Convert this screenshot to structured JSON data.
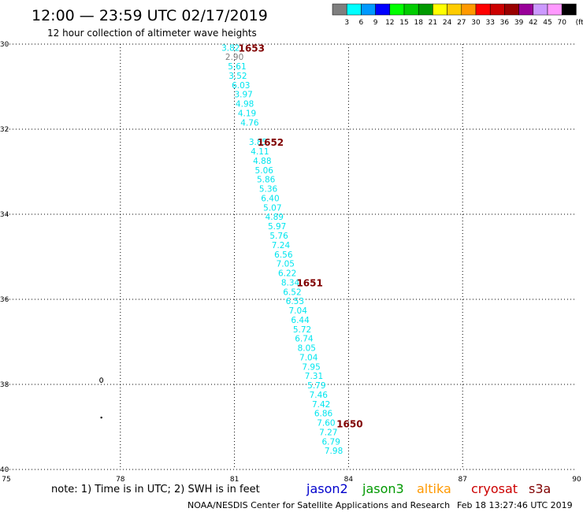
{
  "header": {
    "title": "12:00  —  23:59  UTC  02/17/2019",
    "subtitle": "12 hour collection of altimeter wave heights"
  },
  "color_scale": {
    "labels": [
      "3",
      "6",
      "9",
      "12",
      "15",
      "18",
      "21",
      "24",
      "27",
      "30",
      "33",
      "36",
      "39",
      "42",
      "45",
      "70"
    ],
    "unit": "(ft)",
    "colors": [
      "#7f7f7f",
      "#00ffff",
      "#0099ff",
      "#0000ff",
      "#00ff00",
      "#00cc00",
      "#009900",
      "#ffff00",
      "#ffcc00",
      "#ff9900",
      "#ff0000",
      "#cc0000",
      "#990000",
      "#990099",
      "#cc99ff",
      "#ff99ff",
      "#000000"
    ]
  },
  "chart_data": {
    "type": "scatter",
    "xlim": [
      75,
      90
    ],
    "ylim": [
      -40,
      -30
    ],
    "x_ticks": [
      "75",
      "78",
      "81",
      "84",
      "87",
      "90"
    ],
    "y_ticks": [
      "-30",
      "-32",
      "-34",
      "-36",
      "-38",
      "-40"
    ],
    "grid": true,
    "points": [
      {
        "x": 80.9,
        "y": -30.08,
        "label": "3.82",
        "color": "#00e5ee"
      },
      {
        "x": 81.0,
        "y": -30.3,
        "label": "2.90",
        "color": "#7f7f7f"
      },
      {
        "x": 81.07,
        "y": -30.52,
        "label": "5.61",
        "color": "#00e5ee"
      },
      {
        "x": 81.09,
        "y": -30.74,
        "label": "3.52",
        "color": "#00e5ee"
      },
      {
        "x": 81.17,
        "y": -30.96,
        "label": "6.03",
        "color": "#00e5ee"
      },
      {
        "x": 81.24,
        "y": -31.18,
        "label": "3.97",
        "color": "#00e5ee"
      },
      {
        "x": 81.27,
        "y": -31.4,
        "label": "4.98",
        "color": "#00e5ee"
      },
      {
        "x": 81.33,
        "y": -31.62,
        "label": "4.19",
        "color": "#00e5ee"
      },
      {
        "x": 81.4,
        "y": -31.84,
        "label": "4.76",
        "color": "#00e5ee"
      },
      {
        "x": 81.62,
        "y": -32.3,
        "label": "3.85",
        "color": "#00e5ee"
      },
      {
        "x": 81.67,
        "y": -32.52,
        "label": "4.11",
        "color": "#00e5ee"
      },
      {
        "x": 81.73,
        "y": -32.74,
        "label": "4.88",
        "color": "#00e5ee"
      },
      {
        "x": 81.78,
        "y": -32.96,
        "label": "5.06",
        "color": "#00e5ee"
      },
      {
        "x": 81.83,
        "y": -33.18,
        "label": "5.86",
        "color": "#00e5ee"
      },
      {
        "x": 81.89,
        "y": -33.4,
        "label": "5.36",
        "color": "#00e5ee"
      },
      {
        "x": 81.94,
        "y": -33.62,
        "label": "6.40",
        "color": "#00e5ee"
      },
      {
        "x": 82.0,
        "y": -33.84,
        "label": "5.07",
        "color": "#00e5ee"
      },
      {
        "x": 82.05,
        "y": -34.06,
        "label": "4.89",
        "color": "#00e5ee"
      },
      {
        "x": 82.12,
        "y": -34.28,
        "label": "5.97",
        "color": "#00e5ee"
      },
      {
        "x": 82.17,
        "y": -34.5,
        "label": "5.76",
        "color": "#00e5ee"
      },
      {
        "x": 82.22,
        "y": -34.72,
        "label": "7.24",
        "color": "#00e5ee"
      },
      {
        "x": 82.29,
        "y": -34.94,
        "label": "6.56",
        "color": "#00e5ee"
      },
      {
        "x": 82.34,
        "y": -35.16,
        "label": "7.05",
        "color": "#00e5ee"
      },
      {
        "x": 82.39,
        "y": -35.38,
        "label": "6.22",
        "color": "#00e5ee"
      },
      {
        "x": 82.47,
        "y": -35.6,
        "label": "8.34",
        "color": "#00e5ee"
      },
      {
        "x": 82.52,
        "y": -35.82,
        "label": "6.52",
        "color": "#00e5ee"
      },
      {
        "x": 82.59,
        "y": -36.04,
        "label": "6.53",
        "color": "#00e5ee"
      },
      {
        "x": 82.67,
        "y": -36.26,
        "label": "7.04",
        "color": "#00e5ee"
      },
      {
        "x": 82.73,
        "y": -36.48,
        "label": "6.44",
        "color": "#00e5ee"
      },
      {
        "x": 82.78,
        "y": -36.7,
        "label": "5.72",
        "color": "#00e5ee"
      },
      {
        "x": 82.83,
        "y": -36.92,
        "label": "6.74",
        "color": "#00e5ee"
      },
      {
        "x": 82.9,
        "y": -37.14,
        "label": "8.05",
        "color": "#00e5ee"
      },
      {
        "x": 82.95,
        "y": -37.36,
        "label": "7.04",
        "color": "#00e5ee"
      },
      {
        "x": 83.02,
        "y": -37.58,
        "label": "7.95",
        "color": "#00e5ee"
      },
      {
        "x": 83.09,
        "y": -37.8,
        "label": "7.31",
        "color": "#00e5ee"
      },
      {
        "x": 83.16,
        "y": -38.02,
        "label": "5.79",
        "color": "#00e5ee"
      },
      {
        "x": 83.21,
        "y": -38.24,
        "label": "7.46",
        "color": "#00e5ee"
      },
      {
        "x": 83.28,
        "y": -38.46,
        "label": "7.42",
        "color": "#00e5ee"
      },
      {
        "x": 83.34,
        "y": -38.68,
        "label": "6.86",
        "color": "#00e5ee"
      },
      {
        "x": 83.41,
        "y": -38.9,
        "label": "7.60",
        "color": "#00e5ee"
      },
      {
        "x": 83.47,
        "y": -39.12,
        "label": "7.27",
        "color": "#00e5ee"
      },
      {
        "x": 83.54,
        "y": -39.34,
        "label": "6.79",
        "color": "#00e5ee"
      },
      {
        "x": 83.61,
        "y": -39.56,
        "label": "7.98",
        "color": "#00e5ee"
      }
    ],
    "time_labels": [
      {
        "x": 81.45,
        "y": -30.08,
        "label": "1653",
        "color": "#800000"
      },
      {
        "x": 81.95,
        "y": -32.3,
        "label": "1652",
        "color": "#800000"
      },
      {
        "x": 82.98,
        "y": -35.6,
        "label": "1651",
        "color": "#800000"
      },
      {
        "x": 84.03,
        "y": -38.92,
        "label": "1650",
        "color": "#800000"
      }
    ],
    "land_features": [
      {
        "x": 77.5,
        "y": -37.9,
        "kind": "island-outline"
      },
      {
        "x": 77.5,
        "y": -38.78,
        "kind": "dot"
      }
    ]
  },
  "footer": {
    "note": "note:  1) Time is in UTC;  2) SWH is in feet",
    "legend": [
      {
        "name": "jason2",
        "color": "#0000cc"
      },
      {
        "name": "jason3",
        "color": "#009900"
      },
      {
        "name": "altika",
        "color": "#ff9900"
      },
      {
        "name": "cryosat",
        "color": "#cc0000"
      },
      {
        "name": "s3a",
        "color": "#800000"
      }
    ],
    "credit": "NOAA/NESDIS Center for Satellite Applications and Research",
    "timestamp": "Feb 18 13:27:46 UTC 2019"
  }
}
